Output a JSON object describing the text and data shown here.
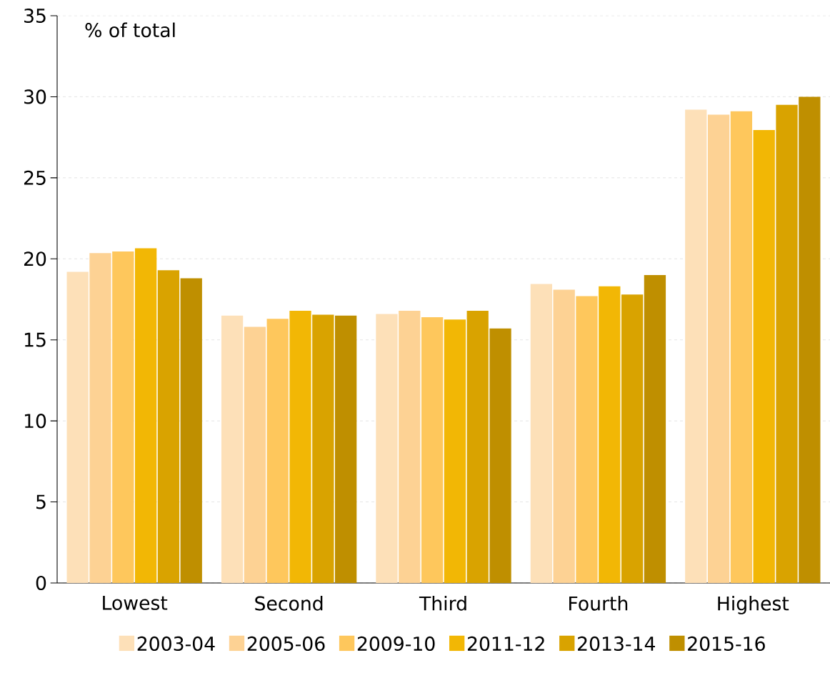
{
  "chart_data": {
    "type": "bar",
    "ylabel": "% of total",
    "categories": [
      "Lowest",
      "Second",
      "Third",
      "Fourth",
      "Highest"
    ],
    "series": [
      {
        "name": "2003-04",
        "color": "#fde0b8",
        "values": [
          19.2,
          16.5,
          16.6,
          18.45,
          29.2
        ]
      },
      {
        "name": "2005-06",
        "color": "#fdd294",
        "values": [
          20.35,
          15.8,
          16.8,
          18.1,
          28.9
        ]
      },
      {
        "name": "2009-10",
        "color": "#fec75c",
        "values": [
          20.45,
          16.3,
          16.4,
          17.7,
          29.1
        ]
      },
      {
        "name": "2011-12",
        "color": "#f2b705",
        "values": [
          20.65,
          16.8,
          16.25,
          18.3,
          27.95
        ]
      },
      {
        "name": "2013-14",
        "color": "#d9a300",
        "values": [
          19.3,
          16.55,
          16.8,
          17.8,
          29.5
        ]
      },
      {
        "name": "2015-16",
        "color": "#bf8f00",
        "values": [
          18.8,
          16.5,
          15.7,
          19.0,
          30.0
        ]
      }
    ],
    "ylim": [
      0,
      35
    ],
    "yticks": [
      0,
      5,
      10,
      15,
      20,
      25,
      30,
      35
    ],
    "grid": "y",
    "legend": "bottom"
  }
}
